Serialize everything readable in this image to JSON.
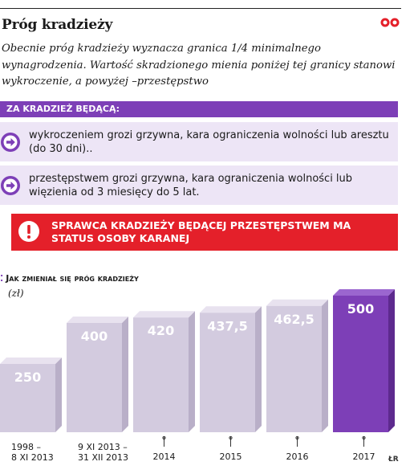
{
  "header": {
    "title": "Próg kradzieży",
    "subtitle": "Obecnie próg kradzieży wyznacza granica 1/4 minimalnego wynagrodzenia. Wartość skradzionego mienia poniżej tej granicy stanowi wykroczenie, a powyżej –przestępstwo"
  },
  "info": {
    "banner": "ZA KRADZIEŻ BĘDĄCĄ:",
    "rows": [
      {
        "text": "wykroczeniem grozi grzywna, kara ograniczenia wolności lub aresztu (do 30 dni).."
      },
      {
        "text": "przestępstwem grozi grzywna, kara ograniczenia wolności lub więzienia od 3 miesięcy do 5 lat."
      }
    ],
    "alert": "SPRAWCA KRADZIEŻY BĘDĄCEJ PRZESTĘPSTWEM MA STATUS OSOBY KARANEJ"
  },
  "colors": {
    "accent": "#7d3fb7",
    "alert": "#e4202a",
    "bar_grey": "#d3cbdf",
    "bar_highlight": "#7d3fb7"
  },
  "source": "ŁR",
  "chart_data": {
    "type": "bar",
    "title": "Jak zmieniał się próg kradzieży",
    "unit": "(zł)",
    "categories": [
      "1998 – 8 XI 2013",
      "9 XI 2013 – 31 XII 2013",
      "2014",
      "2015",
      "2016",
      "2017"
    ],
    "category_lines": [
      [
        "1998 –",
        "8 XI 2013"
      ],
      [
        "9 XI 2013 –",
        "31 XII 2013"
      ],
      [
        "2014"
      ],
      [
        "2015"
      ],
      [
        "2016"
      ],
      [
        "2017"
      ]
    ],
    "values": [
      250,
      400,
      420,
      437.5,
      462.5,
      500
    ],
    "value_labels": [
      "250",
      "400",
      "420",
      "437,5",
      "462,5",
      "500"
    ],
    "highlight_index": 5
  }
}
